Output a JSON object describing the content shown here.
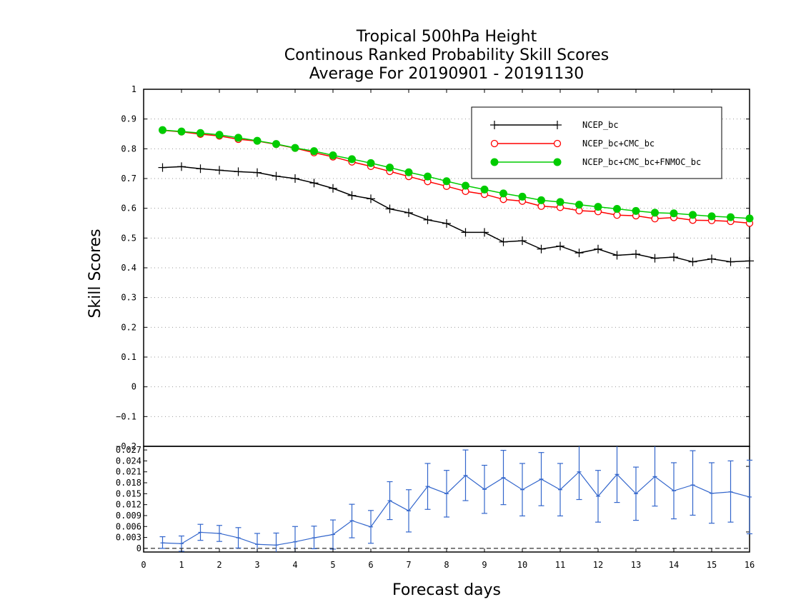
{
  "chart_data": {
    "type": "line",
    "title": [
      "Tropical 500hPa Height",
      "Continous Ranked Probability Skill Scores",
      "Average For 20190901 - 20191130"
    ],
    "xlabel": "Forecast days",
    "ylabel": "Skill Scores",
    "xlim": [
      0,
      16
    ],
    "ylim": [
      -0.2,
      1
    ],
    "x_ticks": [
      "0",
      "1",
      "2",
      "3",
      "4",
      "5",
      "6",
      "7",
      "8",
      "9",
      "10",
      "11",
      "12",
      "13",
      "14",
      "15",
      "16"
    ],
    "y_ticks": [
      "1",
      "0.9",
      "0.8",
      "0.7",
      "0.6",
      "0.5",
      "0.4",
      "0.3",
      "0.2",
      "0.1",
      "0",
      "-0.1",
      "-0.2"
    ],
    "grid": "dotted horizontal",
    "legend_position": "top-right",
    "x": [
      0.5,
      1,
      1.5,
      2,
      2.5,
      3,
      3.5,
      4,
      4.5,
      5,
      5.5,
      6,
      6.5,
      7,
      7.5,
      8,
      8.5,
      9,
      9.5,
      10,
      10.5,
      11,
      11.5,
      12,
      12.5,
      13,
      13.5,
      14,
      14.5,
      15,
      15.5,
      16
    ],
    "series": [
      {
        "name": "NCEP_bc",
        "color": "#000000",
        "marker": "plus",
        "values": [
          0.737,
          0.74,
          0.733,
          0.728,
          0.723,
          0.72,
          0.708,
          0.7,
          0.685,
          0.667,
          0.643,
          0.632,
          0.598,
          0.585,
          0.561,
          0.549,
          0.519,
          0.519,
          0.487,
          0.491,
          0.463,
          0.473,
          0.45,
          0.463,
          0.442,
          0.446,
          0.432,
          0.436,
          0.42,
          0.43,
          0.42,
          0.423
        ]
      },
      {
        "name": "NCEP_bc+CMC_bc",
        "color": "#ff0000",
        "marker": "open-circle",
        "values": [
          0.862,
          0.857,
          0.849,
          0.843,
          0.832,
          0.826,
          0.815,
          0.802,
          0.787,
          0.773,
          0.756,
          0.741,
          0.724,
          0.707,
          0.69,
          0.674,
          0.657,
          0.647,
          0.63,
          0.624,
          0.607,
          0.603,
          0.592,
          0.589,
          0.577,
          0.575,
          0.565,
          0.569,
          0.56,
          0.559,
          0.556,
          0.55
        ]
      },
      {
        "name": "NCEP_bc+CMC_bc+FNMOC_bc",
        "color": "#00cc00",
        "marker": "filled-circle",
        "values": [
          0.863,
          0.858,
          0.853,
          0.847,
          0.837,
          0.827,
          0.816,
          0.803,
          0.792,
          0.778,
          0.765,
          0.752,
          0.737,
          0.721,
          0.707,
          0.691,
          0.676,
          0.663,
          0.65,
          0.639,
          0.627,
          0.621,
          0.612,
          0.605,
          0.598,
          0.591,
          0.585,
          0.583,
          0.578,
          0.573,
          0.57,
          0.566
        ]
      }
    ],
    "difference_panel": {
      "ylim": [
        -0.001,
        0.028
      ],
      "y_ticks": [
        "0.027",
        "0.024",
        "0.021",
        "0.018",
        "0.015",
        "0.012",
        "0.009",
        "0.006",
        "0.003",
        "0"
      ],
      "color": "#3366cc",
      "x": [
        0.5,
        1,
        1.5,
        2,
        2.5,
        3,
        3.5,
        4,
        4.5,
        5,
        5.5,
        6,
        6.5,
        7,
        7.5,
        8,
        8.5,
        9,
        9.5,
        10,
        10.5,
        11,
        11.5,
        12,
        12.5,
        13,
        13.5,
        14,
        14.5,
        15,
        15.5,
        16
      ],
      "values": [
        0.0015,
        0.0013,
        0.0044,
        0.0041,
        0.0029,
        0.0011,
        0.0009,
        0.0018,
        0.0029,
        0.0038,
        0.0076,
        0.0059,
        0.0131,
        0.0103,
        0.017,
        0.015,
        0.02,
        0.0162,
        0.0194,
        0.0161,
        0.019,
        0.0161,
        0.021,
        0.0143,
        0.0203,
        0.015,
        0.0197,
        0.0158,
        0.0174,
        0.0151,
        0.0155,
        0.0141
      ],
      "lower": [
        0.0,
        -0.0008,
        0.0022,
        0.0019,
        0.0001,
        -0.0019,
        -0.0024,
        -0.0024,
        -0.0001,
        -0.0002,
        0.0029,
        0.0014,
        0.0079,
        0.0045,
        0.0107,
        0.0086,
        0.0131,
        0.0096,
        0.012,
        0.0089,
        0.0117,
        0.0089,
        0.0134,
        0.0072,
        0.0126,
        0.0077,
        0.0116,
        0.0081,
        0.0091,
        0.0069,
        0.0072,
        0.004
      ],
      "upper": [
        0.0032,
        0.0034,
        0.0066,
        0.0063,
        0.0057,
        0.0041,
        0.0042,
        0.006,
        0.0061,
        0.0078,
        0.0121,
        0.0104,
        0.0183,
        0.0161,
        0.0233,
        0.0214,
        0.027,
        0.0228,
        0.0269,
        0.0233,
        0.0263,
        0.0233,
        0.029,
        0.0214,
        0.0283,
        0.0223,
        0.0284,
        0.0235,
        0.0268,
        0.0235,
        0.024,
        0.0242
      ]
    }
  }
}
